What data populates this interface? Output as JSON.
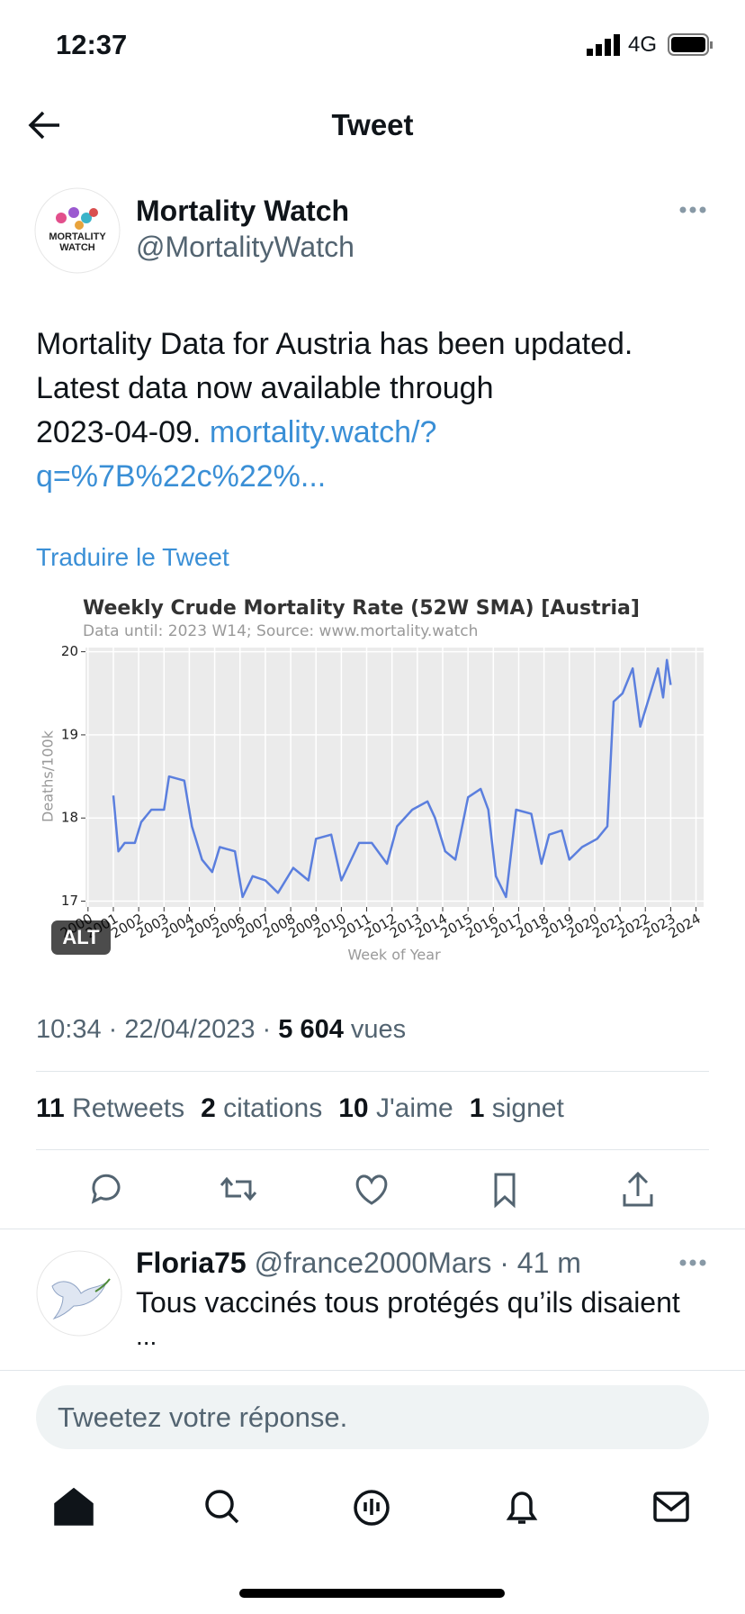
{
  "status": {
    "time": "12:37",
    "network": "4G"
  },
  "header": {
    "title": "Tweet"
  },
  "tweet": {
    "author": "Mortality Watch",
    "handle": "@MortalityWatch",
    "avatar_text": [
      "MORTALITY",
      "WATCH"
    ],
    "text_lines": [
      "Mortality Data for Austria has been updated.",
      "Latest data now available through",
      "2023-04-09."
    ],
    "link_lines": [
      "mortality.watch/?",
      "q=%7B%22c%22%..."
    ],
    "translate": "Traduire le Tweet",
    "alt_badge": "ALT",
    "timestamp": "10:34 · 22/04/2023 ·",
    "views": "5 604",
    "views_label": "vues",
    "stats": [
      {
        "count": "11",
        "label": "Retweets"
      },
      {
        "count": "2",
        "label": "citations"
      },
      {
        "count": "10",
        "label": "J'aime"
      },
      {
        "count": "1",
        "label": "signet"
      }
    ]
  },
  "reply": {
    "author": "Floria75",
    "handle": "@france2000Mars",
    "time": "· 41 m",
    "text": "Tous vaccinés tous protégés qu’ils disaient",
    "more": "..."
  },
  "composer": {
    "placeholder": "Tweetez votre réponse."
  },
  "chart_data": {
    "type": "line",
    "title": "Weekly Crude Mortality Rate (52W SMA) [Austria]",
    "subtitle": "Data until: 2023 W14; Source: www.mortality.watch",
    "x_label": "Week of Year",
    "y_label": "Deaths/100k",
    "x": [
      2001.0,
      2001.2,
      2001.45,
      2001.85,
      2002.1,
      2002.5,
      2003.0,
      2003.2,
      2003.8,
      2004.1,
      2004.5,
      2004.9,
      2005.2,
      2005.8,
      2006.1,
      2006.5,
      2007.0,
      2007.5,
      2008.1,
      2008.7,
      2009.0,
      2009.6,
      2010.0,
      2010.7,
      2011.2,
      2011.8,
      2012.2,
      2012.8,
      2013.4,
      2013.7,
      2014.1,
      2014.5,
      2015.0,
      2015.5,
      2015.8,
      2016.1,
      2016.5,
      2016.9,
      2017.5,
      2017.9,
      2018.2,
      2018.7,
      2019.0,
      2019.5,
      2020.1,
      2020.5,
      2020.75,
      2021.1,
      2021.5,
      2021.8,
      2022.3,
      2022.5,
      2022.7,
      2022.85,
      2023.0
    ],
    "series": [
      {
        "name": "Austria",
        "color": "#5b7fde",
        "values": [
          18.27,
          17.6,
          17.7,
          17.7,
          17.95,
          18.1,
          18.1,
          18.5,
          18.45,
          17.9,
          17.5,
          17.35,
          17.65,
          17.6,
          17.05,
          17.3,
          17.25,
          17.1,
          17.4,
          17.25,
          17.75,
          17.8,
          17.25,
          17.7,
          17.7,
          17.45,
          17.9,
          18.1,
          18.2,
          18.0,
          17.6,
          17.5,
          18.25,
          18.35,
          18.1,
          17.3,
          17.05,
          18.1,
          18.05,
          17.45,
          17.8,
          17.85,
          17.5,
          17.65,
          17.75,
          17.9,
          19.4,
          19.5,
          19.8,
          19.1,
          19.6,
          19.8,
          19.45,
          19.9,
          19.6
        ]
      }
    ],
    "xlim": [
      1999.9,
      2024.3
    ],
    "ylim": [
      16.93,
      20.05
    ],
    "xticks": [
      2000,
      2001,
      2002,
      2003,
      2004,
      2005,
      2006,
      2007,
      2008,
      2009,
      2010,
      2011,
      2012,
      2013,
      2014,
      2015,
      2016,
      2017,
      2018,
      2019,
      2020,
      2021,
      2022,
      2023,
      2024
    ],
    "yticks": [
      17,
      18,
      19,
      20
    ],
    "grid": true
  }
}
